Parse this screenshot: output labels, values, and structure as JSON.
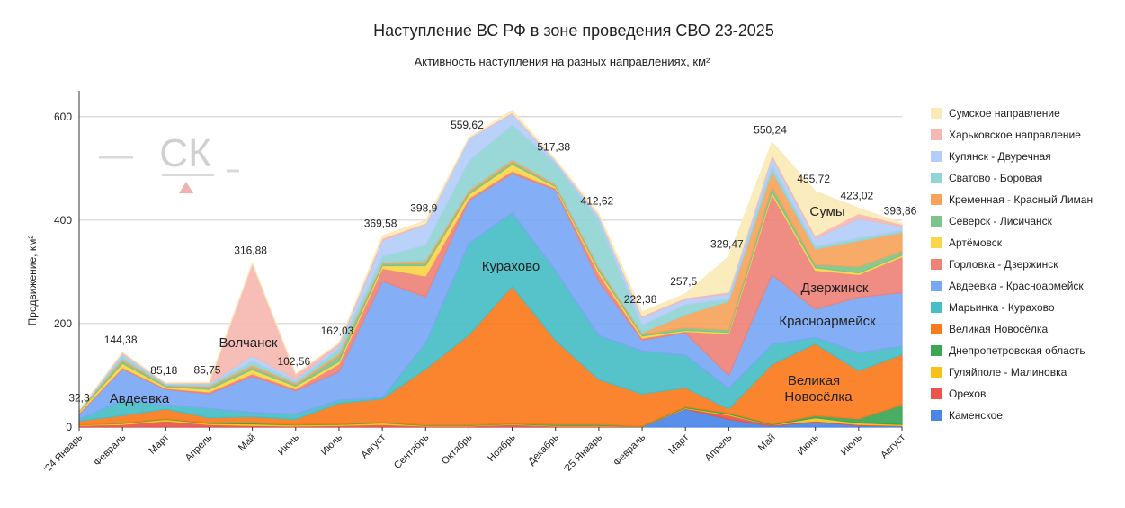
{
  "chart_data": {
    "type": "stacked-area",
    "title": "Наступление ВС РФ в зоне проведения СВО 23-2025",
    "subtitle": "Активность наступления на разных направлениях, км²",
    "y_label": "Продвижение, км²",
    "watermark": "СК",
    "categories": [
      "'24 Январь",
      "Февраль",
      "Март",
      "Апрель",
      "Май",
      "Июнь",
      "Июль",
      "Август",
      "Сентябрь",
      "Октябрь",
      "Ноябрь",
      "Декабрь",
      "'25 Январь",
      "Февраль",
      "Март",
      "Апрель",
      "Май",
      "Июнь",
      "Июль",
      "Август"
    ],
    "ylim": [
      0,
      650
    ],
    "yticks": [
      0,
      200,
      400,
      600
    ],
    "grid": true,
    "legend_position": "right",
    "series": [
      {
        "name": "Каменское",
        "color": "#4a86e8",
        "values": [
          0,
          0,
          0,
          0,
          0,
          0,
          0,
          0,
          0,
          0,
          0,
          0,
          0,
          0,
          35,
          15,
          2,
          10,
          3,
          2
        ]
      },
      {
        "name": "Орехов",
        "color": "#e8554a",
        "values": [
          3,
          5,
          12,
          5,
          3,
          2,
          3,
          5,
          2,
          2,
          5,
          2,
          2,
          1,
          1,
          8,
          2,
          2,
          2,
          1
        ]
      },
      {
        "name": "Гуляйполе - Малиновка",
        "color": "#f9c21a",
        "values": [
          1,
          2,
          3,
          2,
          3,
          2,
          2,
          3,
          1,
          1,
          1,
          1,
          1,
          0,
          1,
          2,
          0,
          6,
          3,
          2
        ]
      },
      {
        "name": "Днепропетровская область",
        "color": "#3aa757",
        "values": [
          0,
          1,
          1,
          1,
          2,
          1,
          1,
          1,
          1,
          1,
          1,
          2,
          2,
          1,
          2,
          2,
          2,
          4,
          8,
          38
        ]
      },
      {
        "name": "Великая Новосёлка",
        "color": "#fb7a1c",
        "values": [
          8,
          14,
          19,
          10,
          12,
          10,
          40,
          45,
          108,
          174,
          265,
          163,
          87,
          62,
          37,
          8,
          115,
          139,
          93,
          97
        ]
      },
      {
        "name": "Марьинка - Курахово",
        "color": "#48bec6",
        "values": [
          3,
          30,
          8,
          18,
          8,
          10,
          6,
          3,
          50,
          177,
          142,
          135,
          85,
          83,
          63,
          40,
          39,
          12,
          35,
          16
        ]
      },
      {
        "name": "Авдеевка - Красноармейск",
        "color": "#7aa7f4",
        "values": [
          10,
          60,
          30,
          28,
          70,
          45,
          55,
          225,
          90,
          83,
          76,
          156,
          105,
          21,
          43,
          25,
          135,
          55,
          107,
          104
        ]
      },
      {
        "name": "Горловка - Дзержинск",
        "color": "#ee8279",
        "values": [
          2,
          3,
          2,
          4,
          5,
          4,
          15,
          25,
          40,
          4,
          5,
          3,
          15,
          4,
          3,
          80,
          155,
          75,
          44,
          69
        ]
      },
      {
        "name": "Артёмовск",
        "color": "#fad648",
        "values": [
          3,
          8,
          3,
          5,
          8,
          5,
          5,
          5,
          20,
          8,
          13,
          3,
          5,
          4,
          2,
          3,
          5,
          5,
          3,
          3
        ]
      },
      {
        "name": "Северск - Лисичанск",
        "color": "#7cc489",
        "values": [
          1,
          5,
          2,
          4,
          5,
          3,
          10,
          3,
          5,
          4,
          5,
          2,
          4,
          3,
          5,
          5,
          10,
          6,
          12,
          8
        ]
      },
      {
        "name": "Кременная - Красный Лиман",
        "color": "#f7a35c",
        "values": [
          0.3,
          4,
          1,
          2,
          4,
          3,
          5,
          3,
          5,
          4,
          4,
          3,
          4,
          3,
          25,
          55,
          30,
          30,
          50,
          36
        ]
      },
      {
        "name": "Сватово - Боровая",
        "color": "#91d5d5",
        "values": [
          1,
          6,
          2,
          3,
          8,
          4,
          10,
          12,
          30,
          57,
          67,
          40,
          90,
          15,
          20,
          5,
          12,
          6,
          6,
          4
        ]
      },
      {
        "name": "Купянск - Двуречная",
        "color": "#b4cdf8",
        "values": [
          0,
          4,
          1.18,
          1.75,
          10,
          4,
          6,
          30,
          40,
          43,
          22,
          5,
          8,
          15,
          10,
          10,
          15,
          15,
          37,
          8
        ]
      },
      {
        "name": "Харьковское направление",
        "color": "#f6b8b2",
        "values": [
          0,
          2.38,
          1,
          2,
          178.88,
          9.56,
          4.03,
          5,
          2,
          1,
          2,
          1,
          2,
          3,
          3,
          3,
          5,
          5,
          10,
          4
        ]
      },
      {
        "name": "Сумское направление",
        "color": "#fbeab8",
        "values": [
          0,
          0,
          0,
          0,
          0,
          0,
          0,
          4.58,
          4.9,
          0.62,
          4,
          1.38,
          2.62,
          7.38,
          7.5,
          68.47,
          23.24,
          85.72,
          10.02,
          1.86
        ]
      }
    ],
    "total_values": [
      32.3,
      144.38,
      85.18,
      85.75,
      316.88,
      102.56,
      162.03,
      369.58,
      398.9,
      559.62,
      null,
      517.38,
      412.62,
      222.38,
      257.5,
      329.47,
      550.24,
      455.72,
      423.02,
      393.86
    ],
    "total_labels": [
      "32,3",
      "144,38",
      "85,18",
      "85,75",
      "316,88",
      "102,56",
      "162,03",
      "369,58",
      "398,9",
      "559,62",
      null,
      "517,38",
      "412,62",
      "222,38",
      "257,5",
      "329,47",
      "550,24",
      "455,72",
      "423,02",
      "393,86"
    ],
    "annotations": [
      "Авдеевка",
      "Волчанск",
      "Курахово",
      "Сумы",
      "Дзержинск",
      "Красноармейск",
      "Великая",
      "Новосёлка"
    ]
  }
}
